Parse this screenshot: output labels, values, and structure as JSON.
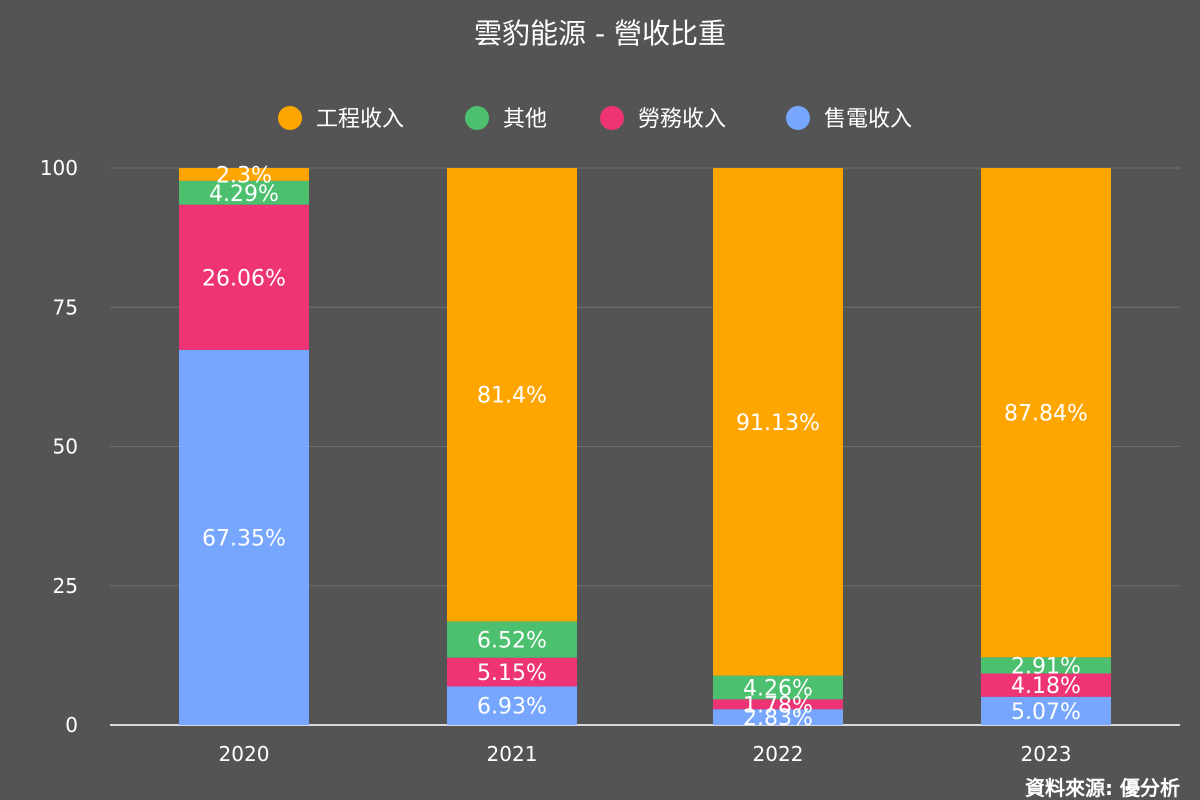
{
  "chart_data": {
    "type": "bar",
    "stacked": true,
    "title": "雲豹能源 - 營收比重",
    "categories": [
      "2020",
      "2021",
      "2022",
      "2023"
    ],
    "series": [
      {
        "name": "售電收入",
        "color": "#77A6FF",
        "values": [
          67.35,
          6.93,
          2.83,
          5.07
        ],
        "labels": [
          "67.35%",
          "6.93%",
          "2.83%",
          "5.07%"
        ]
      },
      {
        "name": "勞務收入",
        "color": "#EE3474",
        "values": [
          26.06,
          5.15,
          1.78,
          4.18
        ],
        "labels": [
          "26.06%",
          "5.15%",
          "1.78%",
          "4.18%"
        ]
      },
      {
        "name": "其他",
        "color": "#4CC06F",
        "values": [
          4.29,
          6.52,
          4.26,
          2.91
        ],
        "labels": [
          "4.29%",
          "6.52%",
          "4.26%",
          "2.91%"
        ]
      },
      {
        "name": "工程收入",
        "color": "#FFA500",
        "values": [
          2.3,
          81.4,
          91.13,
          87.84
        ],
        "labels": [
          "2.3%",
          "81.4%",
          "91.13%",
          "87.84%"
        ]
      }
    ],
    "legend_order": [
      "工程收入",
      "其他",
      "勞務收入",
      "售電收入"
    ],
    "ylim": [
      0,
      100
    ],
    "yticks": [
      0,
      25,
      50,
      75,
      100
    ],
    "grid": true,
    "legend_position": "top",
    "source": "資料來源: 優分析"
  }
}
